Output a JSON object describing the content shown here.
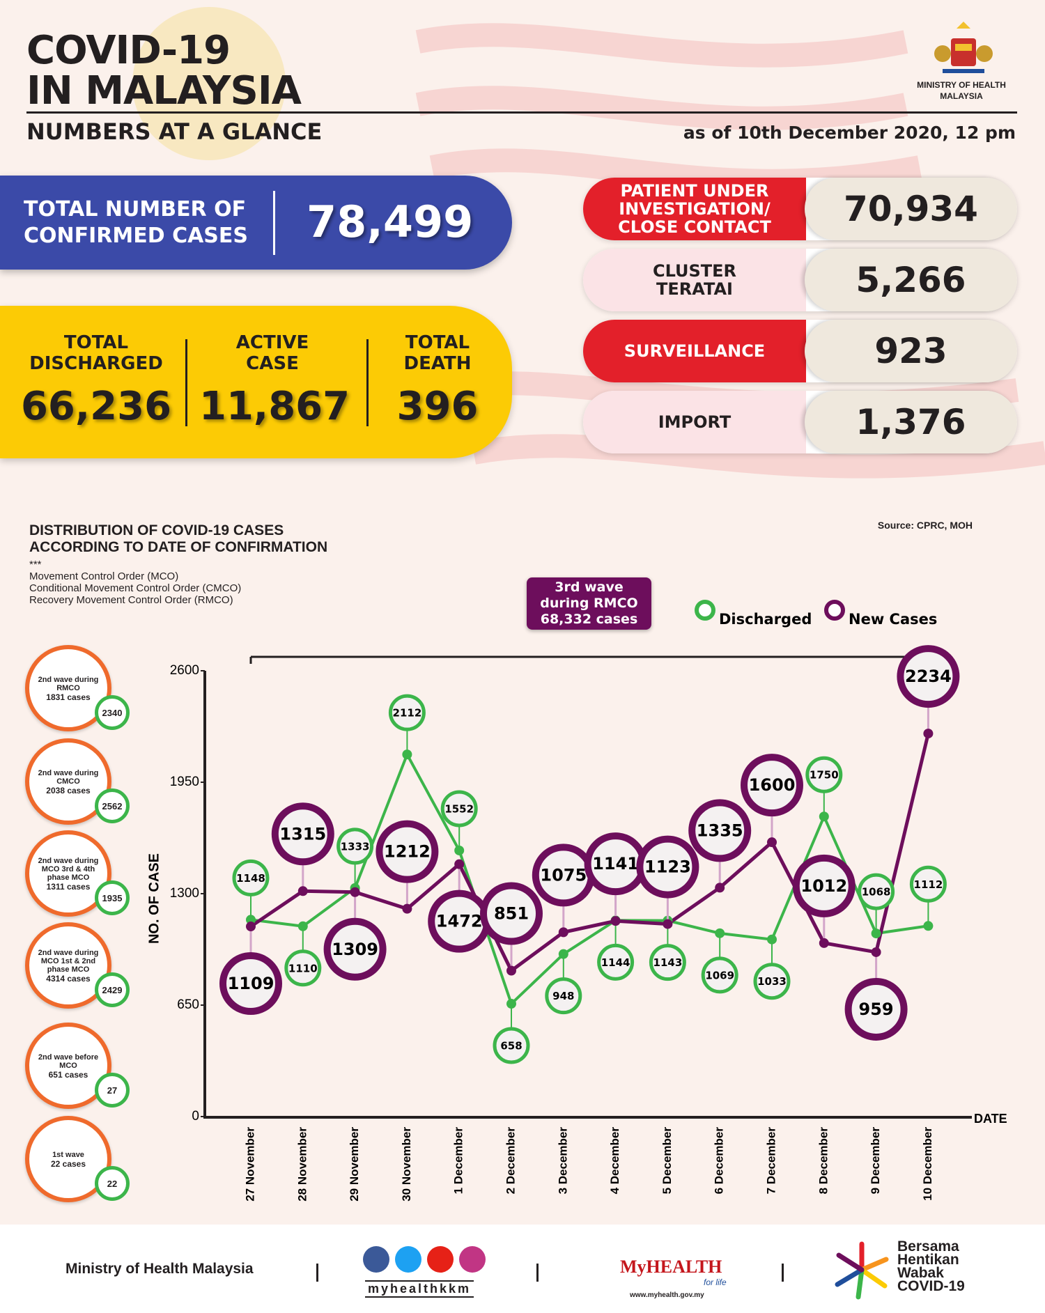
{
  "header": {
    "title": [
      "COVID-19",
      "IN MALAYSIA"
    ],
    "subtitle": "NUMBERS AT A GLANCE",
    "ministry": "MINISTRY OF HEALTH MALAYSIA",
    "date": "as of 10th December 2020, 12 pm"
  },
  "confirmed": {
    "label": "TOTAL NUMBER OF CONFIRMED CASES",
    "value": "78,499"
  },
  "summary": [
    {
      "label": "TOTAL DISCHARGED",
      "value": "66,236"
    },
    {
      "label": "ACTIVE CASE",
      "value": "11,867"
    },
    {
      "label": "TOTAL DEATH",
      "value": "396"
    }
  ],
  "breakdown": [
    {
      "label": "PATIENT UNDER INVESTIGATION/ CLOSE CONTACT",
      "value": "70,934"
    },
    {
      "label": "CLUSTER TERATAI",
      "value": "5,266"
    },
    {
      "label": "SURVEILLANCE",
      "value": "923"
    },
    {
      "label": "IMPORT",
      "value": "1,376"
    }
  ],
  "chart_data": {
    "type": "line",
    "title": [
      "DISTRIBUTION OF COVID-19 CASES",
      "ACCORDING TO DATE OF CONFIRMATION"
    ],
    "notes": [
      "***",
      "Movement Control Order (MCO)",
      "Conditional Movement Control Order (CMCO)",
      "Recovery Movement Control Order (RMCO)"
    ],
    "source": "Source: CPRC, MOH",
    "annotation": [
      "3rd wave",
      "during RMCO",
      "68,332 cases"
    ],
    "ylabel": "NO. OF CASE",
    "xlabel": "DATE",
    "categories": [
      "27 November",
      "28 November",
      "29 November",
      "30 November",
      "1 December",
      "2 December",
      "3 December",
      "4 December",
      "5 December",
      "6 December",
      "7 December",
      "8 December",
      "9 December",
      "10 December"
    ],
    "series": [
      {
        "name": "Discharged",
        "color": "#3cb54a",
        "values": [
          1148,
          1110,
          1333,
          2112,
          1552,
          658,
          948,
          1144,
          1143,
          1069,
          1033,
          1750,
          1068,
          1112
        ]
      },
      {
        "name": "New Cases",
        "color": "#6d0e5c",
        "values": [
          1109,
          1315,
          1309,
          1212,
          1472,
          851,
          1075,
          1141,
          1123,
          1335,
          1600,
          1012,
          959,
          2234
        ]
      }
    ],
    "ylim": [
      0,
      2600
    ],
    "yticks": [
      0,
      650,
      1300,
      1950,
      2600
    ],
    "grid": false
  },
  "waves": [
    {
      "label": "2nd wave during RMCO",
      "cases": "1831 cases",
      "discharged": "2340"
    },
    {
      "label": "2nd wave during CMCO",
      "cases": "2038 cases",
      "discharged": "2562"
    },
    {
      "label": "2nd wave during MCO 3rd & 4th phase MCO",
      "cases": "1311 cases",
      "discharged": "1935"
    },
    {
      "label": "2nd wave during MCO 1st & 2nd phase MCO",
      "cases": "4314 cases",
      "discharged": "2429"
    },
    {
      "label": "2nd wave before MCO",
      "cases": "651 cases",
      "discharged": "27"
    },
    {
      "label": "1st wave",
      "cases": "22 cases",
      "discharged": "22"
    }
  ],
  "footer": {
    "ministry": "Ministry of Health Malaysia",
    "handle": "myhealthkkm",
    "brand": "MyHEALTH",
    "tagline": "for life",
    "url": "www.myhealth.gov.my",
    "campaign": [
      "Bersama",
      "Hentikan",
      "Wabak",
      "COVID-19"
    ]
  }
}
